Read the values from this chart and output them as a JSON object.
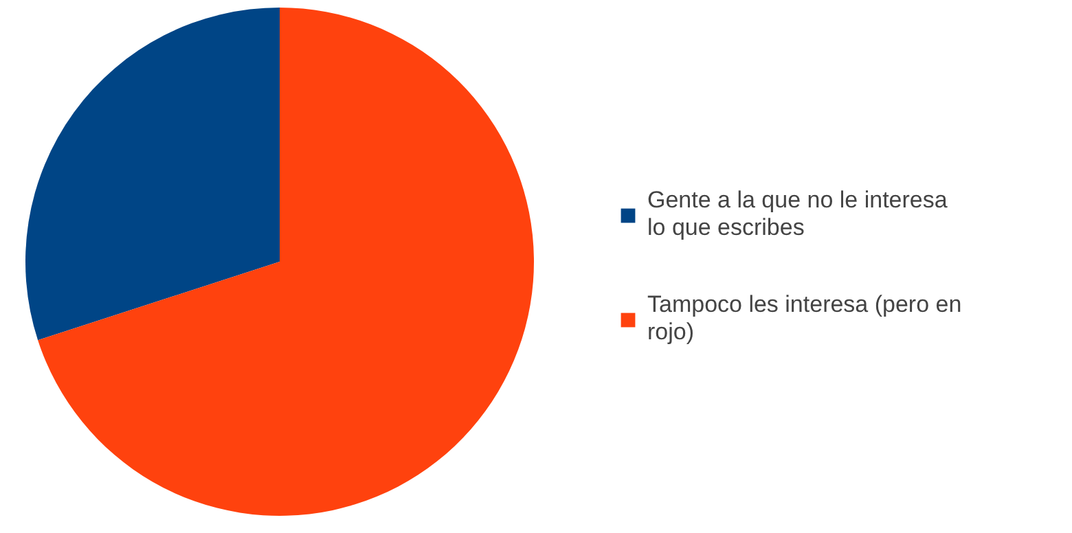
{
  "chart_data": {
    "type": "pie",
    "categories": [
      "Gente a la que no le interesa lo que escribes",
      "Tampoco les interesa (pero en rojo)"
    ],
    "values": [
      30,
      70
    ],
    "colors": [
      "#004586",
      "#ff420e"
    ],
    "legend": "right"
  }
}
